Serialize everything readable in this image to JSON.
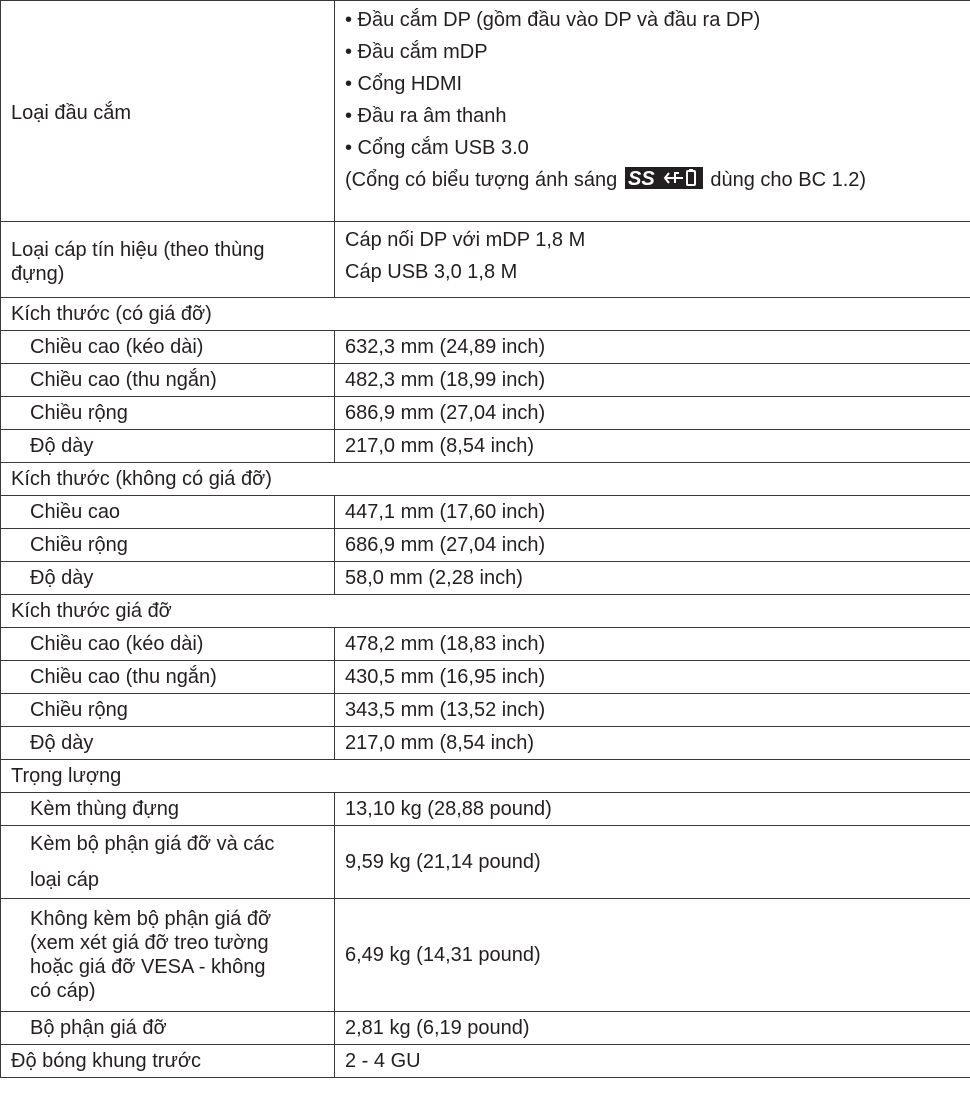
{
  "connector_type": {
    "label": "Loại đầu cắm",
    "items": [
      "• Đầu cắm DP (gồm đầu vào DP và đầu ra DP)",
      "• Đầu cắm mDP",
      "• Cổng HDMI",
      "• Đầu ra âm thanh",
      "• Cổng cắm USB 3.0"
    ],
    "note_prefix": "(Cổng có biểu tượng ánh sáng",
    "note_suffix": "dùng cho BC 1.2)",
    "icon_text": "SS"
  },
  "signal_cable": {
    "label_line1": "Loại cáp tín hiệu (theo thùng",
    "label_line2": "đựng)",
    "values": [
      "Cáp nối DP với mDP 1,8 M",
      "Cáp USB 3,0 1,8 M"
    ]
  },
  "dimensions_with_stand": {
    "header": "Kích thước (có giá đỡ)",
    "rows": [
      {
        "label": "Chiều cao (kéo dài)",
        "value": "632,3 mm (24,89 inch)"
      },
      {
        "label": "Chiều cao (thu ngắn)",
        "value": "482,3 mm (18,99 inch)"
      },
      {
        "label": "Chiều rộng",
        "value": "686,9 mm (27,04 inch)"
      },
      {
        "label": "Độ dày",
        "value": "217,0 mm (8,54 inch)"
      }
    ]
  },
  "dimensions_without_stand": {
    "header": "Kích thước (không có giá đỡ)",
    "rows": [
      {
        "label": "Chiều cao",
        "value": "447,1 mm (17,60 inch)"
      },
      {
        "label": "Chiều rộng",
        "value": "686,9 mm (27,04 inch)"
      },
      {
        "label": "Độ dày",
        "value": "58,0 mm (2,28 inch)"
      }
    ]
  },
  "stand_dimensions": {
    "header": "Kích thước giá đỡ",
    "rows": [
      {
        "label": "Chiều cao (kéo dài)",
        "value": "478,2 mm (18,83 inch)"
      },
      {
        "label": "Chiều cao (thu ngắn)",
        "value": "430,5 mm (16,95 inch)"
      },
      {
        "label": "Chiều rộng",
        "value": "343,5 mm (13,52 inch)"
      },
      {
        "label": "Độ dày",
        "value": "217,0 mm (8,54 inch)"
      }
    ]
  },
  "weight": {
    "header": "Trọng lượng",
    "with_package": {
      "label": "Kèm thùng đựng",
      "value": "13,10 kg (28,88 pound)"
    },
    "with_stand": {
      "label_line1": "Kèm bộ phận giá đỡ và các",
      "label_line2": "loại cáp",
      "value": "9,59 kg (21,14 pound)"
    },
    "without_stand": {
      "label_lines": [
        "Không kèm bộ phận giá đỡ",
        "(xem xét giá đỡ treo tường",
        "hoặc giá đỡ VESA - không",
        "có cáp)"
      ],
      "value": "6,49 kg (14,31 pound)"
    },
    "stand_assembly": {
      "label": "Bộ phận giá đỡ",
      "value": "2,81 kg (6,19 pound)"
    }
  },
  "front_frame_gloss": {
    "label": "Độ bóng khung trước",
    "value": "2 - 4 GU"
  },
  "colors": {
    "border": "#3a3a3a",
    "text": "#231f20",
    "icon_fill": "#231f20",
    "icon_text": "#ffffff"
  }
}
